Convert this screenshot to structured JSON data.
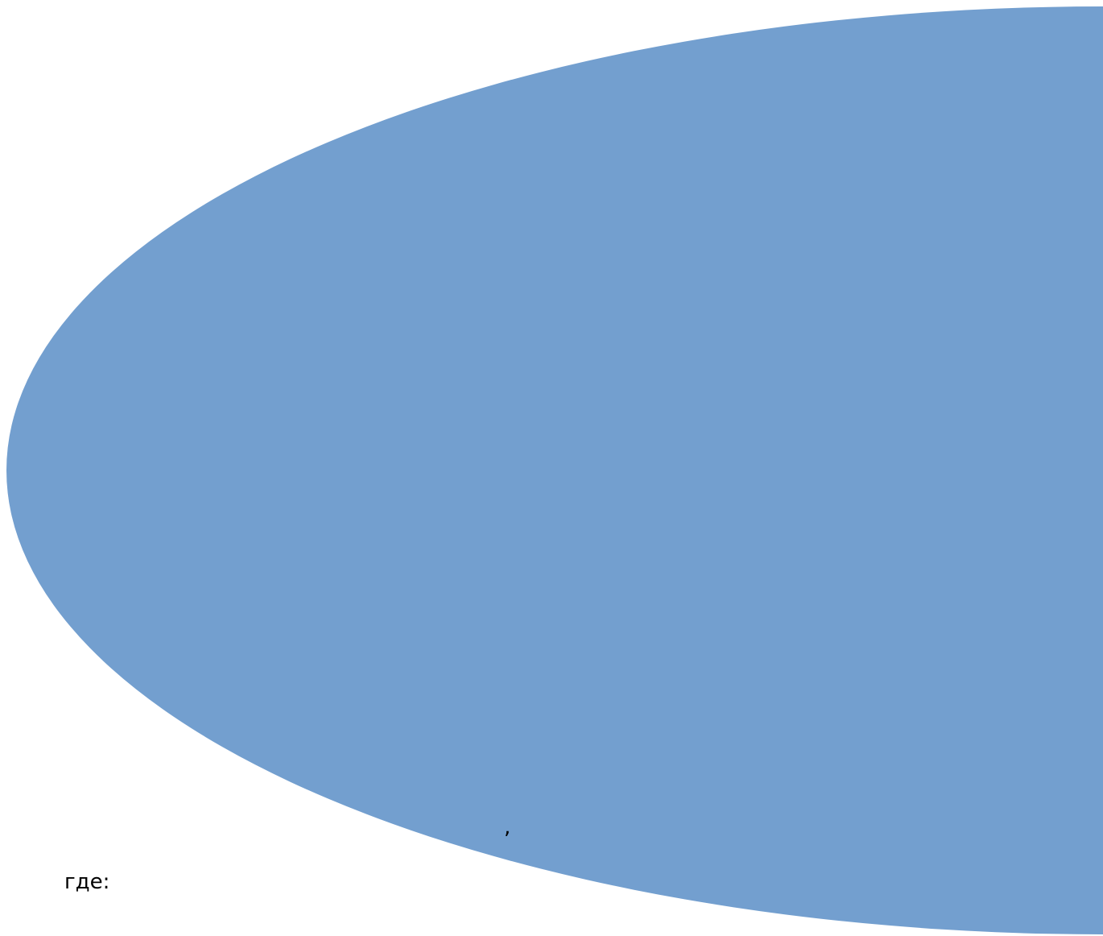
{
  "document": {
    "comma": ",",
    "where_label": "где:"
  },
  "shape": {
    "kind": "ellipse",
    "fill_color": "#739fcf"
  }
}
